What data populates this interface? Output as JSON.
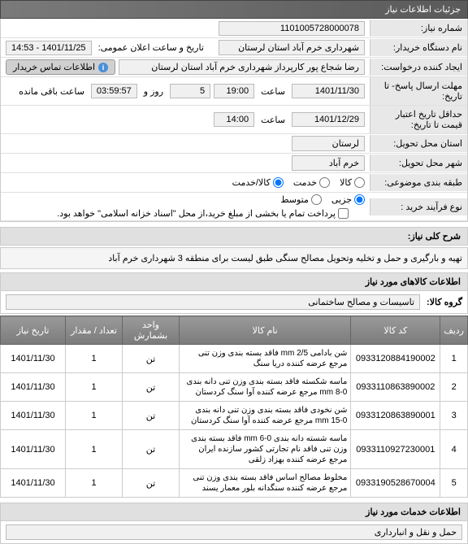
{
  "headers": {
    "main": "جزئیات اطلاعات نیاز",
    "desc_label": "شرح کلی نیاز:",
    "items_info": "اطلاعات کالاهای مورد نیاز",
    "group_label": "گروه کالا:",
    "services_info": "اطلاعات خدمات مورد نیاز"
  },
  "fields": {
    "need_number": {
      "label": "شماره نیاز:",
      "value": "1101005728000078"
    },
    "device_name": {
      "label": "نام دستگاه خریدار:",
      "value": "شهرداری خرم آباد استان لرستان"
    },
    "requester": {
      "label": "ایجاد کننده درخواست:",
      "value": "رضا شجاع پور کارپرداز شهرداری خرم آباد استان لرستان"
    },
    "contact_btn": "اطلاعات تماس خریدار",
    "response_deadline": {
      "label": "مهلت ارسال پاسخ- تا تاریخ:",
      "date": "1401/11/30",
      "time": "19:00",
      "days": "5",
      "remaining": "03:59:57"
    },
    "time_label": "ساعت",
    "day_label": "روز و",
    "remaining_label": "ساعت باقی مانده",
    "validity": {
      "label": "حداقل تاریخ اعتبار قیمت تا تاریخ:",
      "date": "1401/12/29",
      "time": "14:00"
    },
    "delivery_province": {
      "label": "استان محل تحویل:",
      "value": "لرستان"
    },
    "delivery_city": {
      "label": "شهر محل تحویل:",
      "value": "خرم آباد"
    },
    "category": {
      "label": "طبقه بندی موضوعی:"
    },
    "cat_options": {
      "goods": "کالا",
      "service": "خدمت",
      "both": "کالا/خدمت"
    },
    "purchase_type": {
      "label": "نوع فرآیند خرید :"
    },
    "type_options": {
      "minor": "جزیی",
      "medium": "متوسط"
    },
    "payment_note": "پرداخت تمام یا بخشی از مبلغ خرید،از محل \"اسناد خزانه اسلامی\" خواهد بود.",
    "public_announce": {
      "label": "تاریخ و ساعت اعلان عمومی:",
      "value": "1401/11/25 - 14:53"
    }
  },
  "description": "تهیه و بارگیری و حمل و تخلیه وتحویل مصالح سنگی طبق لیست برای منطقه 3 شهرداری خرم آباد",
  "group_value": "تاسیسات و مصالح ساختمانی",
  "table": {
    "columns": [
      "ردیف",
      "کد کالا",
      "نام کالا",
      "واحد بشمارش",
      "تعداد / مقدار",
      "تاریخ نیاز"
    ],
    "rows": [
      {
        "idx": "1",
        "code": "0933120884190002",
        "name": "شن بادامی mm 2/5 فاقد بسته بندی وزن تنی مرجع عرضه کننده دریا سنگ",
        "unit": "تن",
        "qty": "1",
        "date": "1401/11/30"
      },
      {
        "idx": "2",
        "code": "0933110863890002",
        "name": "ماسه شکسته فاقد بسته بندی وزن تنی دانه بندی mm 8-0 مرجع عرضه کننده آوا سنگ کردستان",
        "unit": "تن",
        "qty": "1",
        "date": "1401/11/30"
      },
      {
        "idx": "3",
        "code": "0933120863890001",
        "name": "شن نخودی فاقد بسته بندی وزن تنی دانه بندی mm 15-0 مرجع عرضه کننده آوا سنگ کردستان",
        "unit": "تن",
        "qty": "1",
        "date": "1401/11/30"
      },
      {
        "idx": "4",
        "code": "0933110927230001",
        "name": "ماسه شسته دانه بندی mm 6-0 فاقد بسته بندی وزن تنی فاقد نام تجارتی کشور سازنده ایران مرجع عرضه کننده بهزاد زلقی",
        "unit": "تن",
        "qty": "1",
        "date": "1401/11/30"
      },
      {
        "idx": "5",
        "code": "0933190528670004",
        "name": "مخلوط مصالح اساس فاقد بسته بندی وزن تنی مرجع عرضه کننده سنگدانه بلور معمار یسند",
        "unit": "تن",
        "qty": "1",
        "date": "1401/11/30"
      }
    ]
  },
  "service_value": "حمل و نقل و انبارداری",
  "colors": {
    "header_bg": "#5a5a5a",
    "th_bg": "#8a8a8a",
    "label_bg": "#e8e8e8",
    "input_bg": "#f0f0f0",
    "border": "#cccccc"
  }
}
